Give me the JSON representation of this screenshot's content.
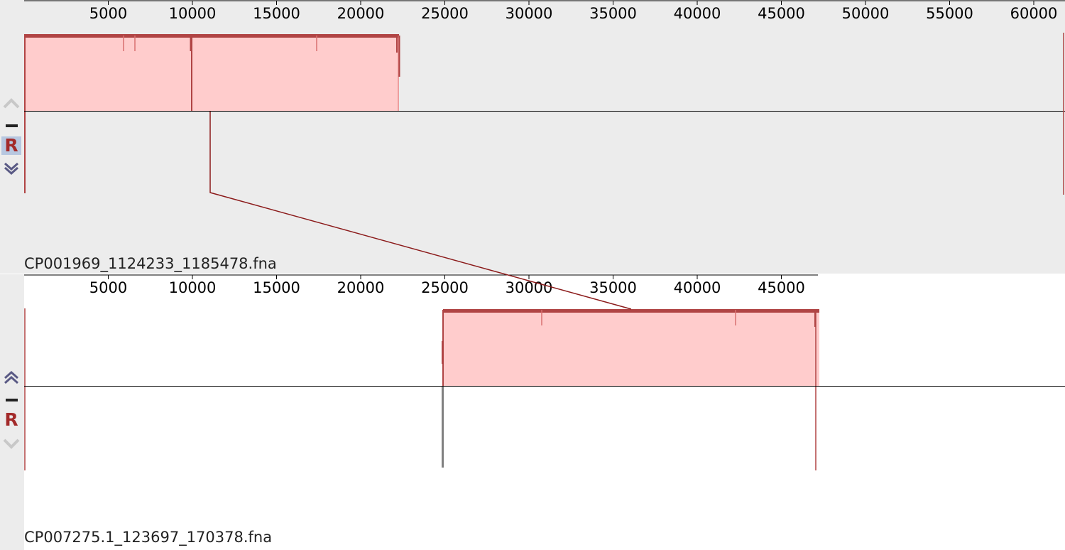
{
  "colors": {
    "block_fill": "#ffcccc",
    "block_edge": "#b04444",
    "lcb_line": "#8b1a1a",
    "gray_edge": "#808080",
    "panel_bg_top": "#ececec",
    "panel_bg_bottom": "#ffffff",
    "axis_text": "#000000"
  },
  "genomes": [
    {
      "name": "CP001969_1124233_1185478.fna",
      "ruler_ticks": [
        "5000",
        "10000",
        "15000",
        "20000",
        "25000",
        "30000",
        "35000",
        "40000",
        "45000",
        "50000",
        "55000",
        "60000"
      ],
      "controls": {
        "up_icon": "chevron-up-icon",
        "minus_icon": "minus-icon",
        "r_label": "R",
        "down_icon": "chevron-down-icon"
      },
      "block": {
        "start": 1,
        "end": 22000,
        "strand": "forward"
      }
    },
    {
      "name": "CP007275.1_123697_170378.fna",
      "ruler_ticks": [
        "5000",
        "10000",
        "15000",
        "20000",
        "25000",
        "30000",
        "35000",
        "40000",
        "45000"
      ],
      "controls": {
        "up_icon": "chevron-up-icon",
        "minus_icon": "minus-icon",
        "r_label": "R",
        "down_icon": "chevron-down-icon"
      },
      "block": {
        "start": 24600,
        "end": 46681,
        "strand": "forward"
      }
    }
  ]
}
